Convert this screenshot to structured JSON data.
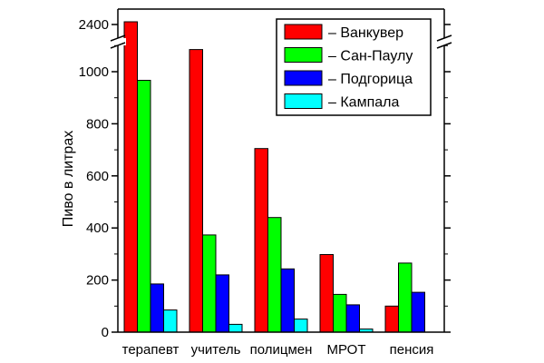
{
  "chart_data": {
    "type": "bar",
    "ylabel": "Пиво в литрах",
    "xlabel": "",
    "categories": [
      "терапевт",
      "учитель",
      "полицмен",
      "МРОТ",
      "пенсия"
    ],
    "series": [
      {
        "name": "Ванкувер",
        "color": "#ff0000",
        "values": [
          2450,
          1085,
          705,
          298,
          100
        ]
      },
      {
        "name": "Сан-Паулу",
        "color": "#00ff00",
        "values": [
          967,
          373,
          440,
          145,
          265
        ]
      },
      {
        "name": "Подгорица",
        "color": "#0000ff",
        "values": [
          185,
          220,
          243,
          105,
          153
        ]
      },
      {
        "name": "Кампала",
        "color": "#00ffff",
        "values": [
          85,
          30,
          50,
          12,
          0
        ]
      }
    ],
    "y_axis": {
      "broken": true,
      "lower_range": [
        0,
        1100
      ],
      "lower_ticks": [
        0,
        200,
        400,
        600,
        800,
        1000
      ],
      "upper_ticks": [
        2400
      ],
      "upper_tick_labels": [
        "2400"
      ]
    },
    "legend": {
      "position": "top-right",
      "entries": [
        "– Ванкувер",
        "– Сан-Паулу",
        "– Подгорица",
        "– Кампала"
      ]
    },
    "grid": false
  }
}
